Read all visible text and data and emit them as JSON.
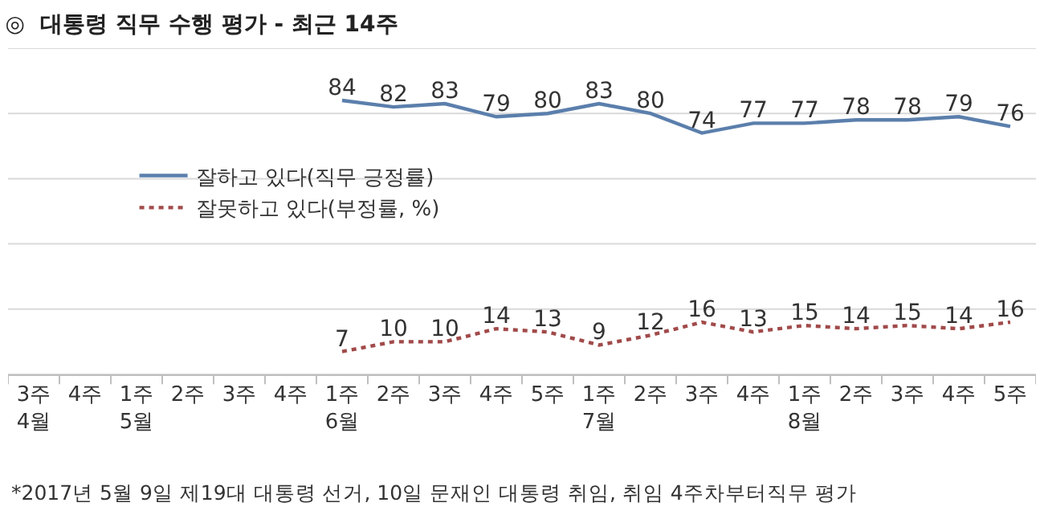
{
  "chart_data": {
    "type": "line",
    "title": "◎  대통령 직무 수행 평가 - 최근 14주",
    "categories": [
      "3주\n4월",
      "4주",
      "1주\n5월",
      "2주",
      "3주",
      "4주",
      "1주\n6월",
      "2주",
      "3주",
      "4주",
      "5주",
      "1주\n7월",
      "2주",
      "3주",
      "4주",
      "1주\n8월",
      "2주",
      "3주",
      "4주",
      "5주"
    ],
    "series": [
      {
        "name": "잘하고 있다(직무 긍정률)",
        "color": "#5b7fac",
        "line_style": "solid",
        "values": [
          null,
          null,
          null,
          null,
          null,
          null,
          84,
          82,
          83,
          79,
          80,
          83,
          80,
          74,
          77,
          77,
          78,
          78,
          79,
          76
        ]
      },
      {
        "name": "잘못하고 있다(부정률, %)",
        "color": "#a14a4a",
        "line_style": "dotted",
        "values": [
          null,
          null,
          null,
          null,
          null,
          null,
          7,
          10,
          10,
          14,
          13,
          9,
          12,
          16,
          13,
          15,
          14,
          15,
          14,
          16
        ]
      }
    ],
    "ylim": [
      0,
      100
    ],
    "yticks": [
      {
        "value": 0,
        "label": null
      },
      {
        "value": 20,
        "label": null
      },
      {
        "value": 40,
        "label": null
      },
      {
        "value": 60,
        "label": null
      },
      {
        "value": 80,
        "label": null
      },
      {
        "value": 100,
        "label": null
      }
    ],
    "tick_labels": "x",
    "grid": "y",
    "legend": "left",
    "marker": "none",
    "data_labels": true,
    "annotations": [
      "*2017년 5월 9일 제19대 대통령 선거, 10일 문재인 대통령 취임, 취임 4주차부터직무 평가"
    ]
  }
}
